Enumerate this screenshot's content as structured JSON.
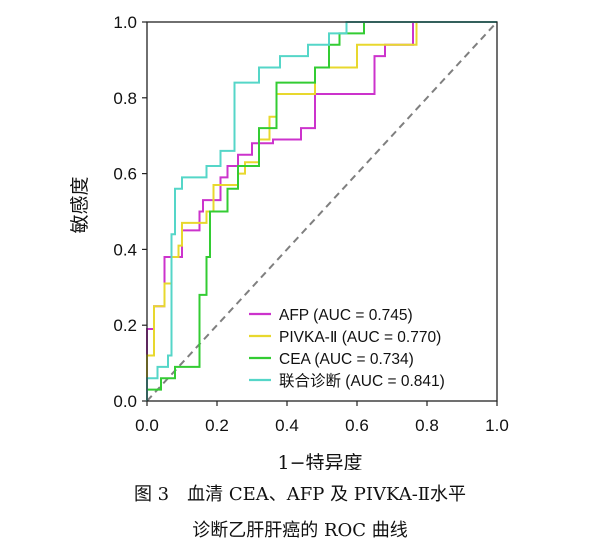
{
  "chart_data": {
    "type": "line",
    "xlabel": "1−特异度",
    "ylabel": "敏感度",
    "xlim": [
      0,
      1
    ],
    "ylim": [
      0,
      1
    ],
    "xticks": [
      "0.0",
      "0.2",
      "0.4",
      "0.6",
      "0.8",
      "1.0"
    ],
    "yticks": [
      "0.0",
      "0.2",
      "0.4",
      "0.6",
      "0.8",
      "1.0"
    ],
    "grid": false,
    "legend_position": "bottom-right",
    "reference_line": {
      "style": "dashed",
      "color": "#7f7f7f",
      "from": [
        0,
        0
      ],
      "to": [
        1,
        1
      ]
    },
    "series": [
      {
        "name": "AFP",
        "legend": "AFP (AUC = 0.745)",
        "auc": 0.745,
        "color": "#cc33cc",
        "points": [
          [
            0,
            0
          ],
          [
            0,
            0.19
          ],
          [
            0.02,
            0.19
          ],
          [
            0.02,
            0.25
          ],
          [
            0.05,
            0.25
          ],
          [
            0.05,
            0.38
          ],
          [
            0.1,
            0.38
          ],
          [
            0.1,
            0.45
          ],
          [
            0.15,
            0.45
          ],
          [
            0.15,
            0.5
          ],
          [
            0.16,
            0.5
          ],
          [
            0.16,
            0.53
          ],
          [
            0.21,
            0.53
          ],
          [
            0.21,
            0.59
          ],
          [
            0.23,
            0.59
          ],
          [
            0.23,
            0.62
          ],
          [
            0.26,
            0.62
          ],
          [
            0.26,
            0.65
          ],
          [
            0.3,
            0.65
          ],
          [
            0.3,
            0.68
          ],
          [
            0.36,
            0.68
          ],
          [
            0.36,
            0.69
          ],
          [
            0.44,
            0.69
          ],
          [
            0.44,
            0.72
          ],
          [
            0.48,
            0.72
          ],
          [
            0.48,
            0.81
          ],
          [
            0.65,
            0.81
          ],
          [
            0.65,
            0.91
          ],
          [
            0.68,
            0.91
          ],
          [
            0.68,
            0.94
          ],
          [
            0.76,
            0.94
          ],
          [
            0.76,
            1
          ],
          [
            1,
            1
          ]
        ]
      },
      {
        "name": "PIVKA-Ⅱ",
        "legend": "PIVKA-Ⅱ (AUC = 0.770)",
        "auc": 0.77,
        "color": "#e8d82e",
        "points": [
          [
            0,
            0
          ],
          [
            0,
            0.12
          ],
          [
            0.02,
            0.12
          ],
          [
            0.02,
            0.25
          ],
          [
            0.05,
            0.25
          ],
          [
            0.05,
            0.31
          ],
          [
            0.07,
            0.31
          ],
          [
            0.07,
            0.38
          ],
          [
            0.09,
            0.38
          ],
          [
            0.09,
            0.41
          ],
          [
            0.1,
            0.41
          ],
          [
            0.1,
            0.47
          ],
          [
            0.17,
            0.47
          ],
          [
            0.17,
            0.5
          ],
          [
            0.19,
            0.5
          ],
          [
            0.19,
            0.57
          ],
          [
            0.26,
            0.57
          ],
          [
            0.26,
            0.6
          ],
          [
            0.28,
            0.6
          ],
          [
            0.28,
            0.63
          ],
          [
            0.32,
            0.63
          ],
          [
            0.32,
            0.69
          ],
          [
            0.35,
            0.69
          ],
          [
            0.35,
            0.75
          ],
          [
            0.37,
            0.75
          ],
          [
            0.37,
            0.81
          ],
          [
            0.48,
            0.81
          ],
          [
            0.48,
            0.88
          ],
          [
            0.6,
            0.88
          ],
          [
            0.6,
            0.94
          ],
          [
            0.77,
            0.94
          ],
          [
            0.77,
            1
          ],
          [
            1,
            1
          ]
        ]
      },
      {
        "name": "CEA",
        "legend": "CEA (AUC = 0.734)",
        "auc": 0.734,
        "color": "#33cc33",
        "points": [
          [
            0,
            0
          ],
          [
            0,
            0.03
          ],
          [
            0.04,
            0.03
          ],
          [
            0.04,
            0.06
          ],
          [
            0.08,
            0.06
          ],
          [
            0.08,
            0.09
          ],
          [
            0.15,
            0.09
          ],
          [
            0.15,
            0.28
          ],
          [
            0.17,
            0.28
          ],
          [
            0.17,
            0.38
          ],
          [
            0.18,
            0.38
          ],
          [
            0.18,
            0.5
          ],
          [
            0.23,
            0.5
          ],
          [
            0.23,
            0.56
          ],
          [
            0.26,
            0.56
          ],
          [
            0.26,
            0.62
          ],
          [
            0.32,
            0.62
          ],
          [
            0.32,
            0.72
          ],
          [
            0.37,
            0.72
          ],
          [
            0.37,
            0.84
          ],
          [
            0.48,
            0.84
          ],
          [
            0.48,
            0.88
          ],
          [
            0.52,
            0.88
          ],
          [
            0.52,
            0.94
          ],
          [
            0.55,
            0.94
          ],
          [
            0.55,
            0.97
          ],
          [
            0.62,
            0.97
          ],
          [
            0.62,
            1
          ],
          [
            1,
            1
          ]
        ]
      },
      {
        "name": "联合诊断",
        "legend": "联合诊断 (AUC = 0.841)",
        "auc": 0.841,
        "color": "#55d6c8",
        "points": [
          [
            0,
            0
          ],
          [
            0,
            0.06
          ],
          [
            0.03,
            0.06
          ],
          [
            0.03,
            0.09
          ],
          [
            0.06,
            0.09
          ],
          [
            0.06,
            0.12
          ],
          [
            0.07,
            0.12
          ],
          [
            0.07,
            0.44
          ],
          [
            0.08,
            0.44
          ],
          [
            0.08,
            0.56
          ],
          [
            0.1,
            0.56
          ],
          [
            0.1,
            0.59
          ],
          [
            0.17,
            0.59
          ],
          [
            0.17,
            0.62
          ],
          [
            0.21,
            0.62
          ],
          [
            0.21,
            0.66
          ],
          [
            0.25,
            0.66
          ],
          [
            0.25,
            0.84
          ],
          [
            0.32,
            0.84
          ],
          [
            0.32,
            0.88
          ],
          [
            0.38,
            0.88
          ],
          [
            0.38,
            0.91
          ],
          [
            0.46,
            0.91
          ],
          [
            0.46,
            0.94
          ],
          [
            0.52,
            0.94
          ],
          [
            0.52,
            0.97
          ],
          [
            0.57,
            0.97
          ],
          [
            0.57,
            1
          ],
          [
            1,
            1
          ]
        ]
      }
    ]
  },
  "caption": {
    "line1": "图 3　血清 CEA、AFP 及 PIVKA-Ⅱ水平",
    "line2": "诊断乙肝肝癌的 ROC 曲线"
  }
}
